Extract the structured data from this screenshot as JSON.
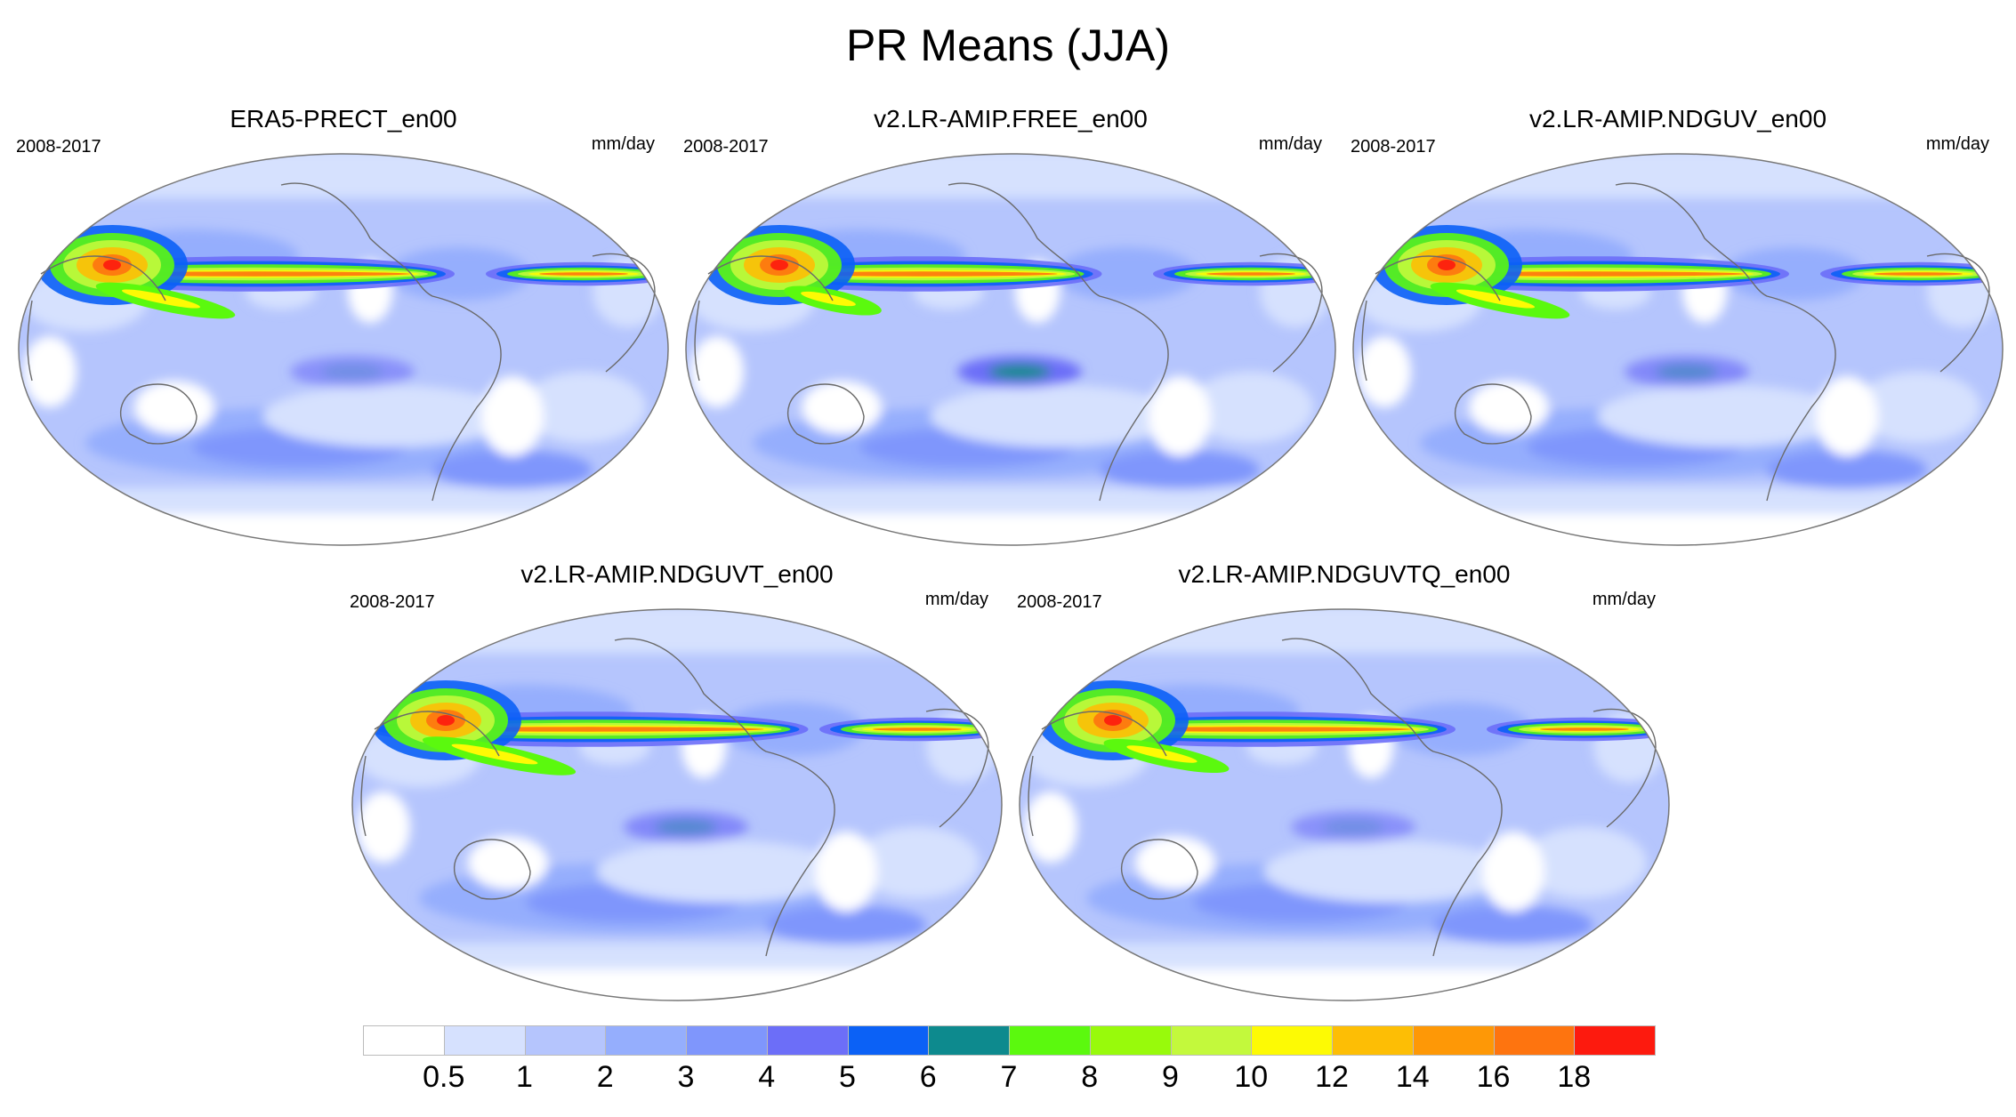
{
  "title": "PR Means (JJA)",
  "panels": [
    {
      "title": "ERA5-PRECT_en00",
      "period": "2008-2017",
      "units": "mm/day",
      "icon": "world-precip-map"
    },
    {
      "title": "v2.LR-AMIP.FREE_en00",
      "period": "2008-2017",
      "units": "mm/day",
      "icon": "world-precip-map"
    },
    {
      "title": "v2.LR-AMIP.NDGUV_en00",
      "period": "2008-2017",
      "units": "mm/day",
      "icon": "world-precip-map"
    },
    {
      "title": "v2.LR-AMIP.NDGUVT_en00",
      "period": "2008-2017",
      "units": "mm/day",
      "icon": "world-precip-map"
    },
    {
      "title": "v2.LR-AMIP.NDGUVTQ_en00",
      "period": "2008-2017",
      "units": "mm/day",
      "icon": "world-precip-map"
    }
  ],
  "colorbar": {
    "labels": [
      "0.5",
      "1",
      "2",
      "3",
      "4",
      "5",
      "6",
      "7",
      "8",
      "9",
      "10",
      "12",
      "14",
      "16",
      "18"
    ],
    "colors": [
      "#ffffff",
      "#d6e1fe",
      "#b5c5fd",
      "#95aefd",
      "#7f96fc",
      "#6c6ef8",
      "#0b61f6",
      "#0d8a8e",
      "#5bf90e",
      "#98fa0b",
      "#c3f93c",
      "#fdfa04",
      "#fdbe05",
      "#fe9806",
      "#fe740f",
      "#fd1a0e"
    ]
  }
}
